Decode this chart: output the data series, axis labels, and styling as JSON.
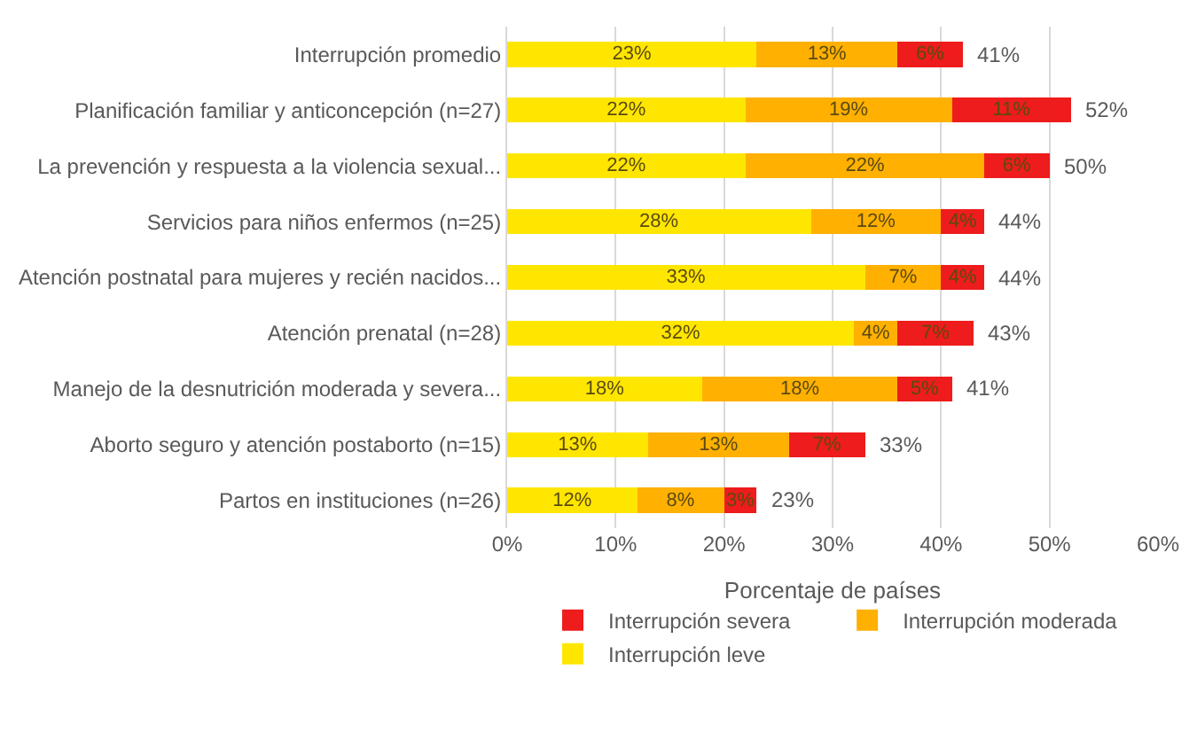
{
  "chart_data": {
    "type": "bar",
    "orientation": "horizontal",
    "stacked": true,
    "categories": [
      "Interrupción promedio",
      "Planificación familiar y anticoncepción (n=27)",
      "La prevención y respuesta a la violencia sexual...",
      "Servicios para niños enfermos (n=25)",
      "Atención postnatal para mujeres y recién nacidos...",
      "Atención prenatal (n=28)",
      "Manejo de la desnutrición moderada y severa...",
      "Aborto seguro y atención postaborto (n=15)",
      "Partos en instituciones (n=26)"
    ],
    "series": [
      {
        "name": "Interrupción leve",
        "color": "#ffe600",
        "values": [
          23,
          22,
          22,
          28,
          33,
          32,
          18,
          13,
          12
        ],
        "value_labels": [
          "23%",
          "22%",
          "22%",
          "28%",
          "33%",
          "32%",
          "18%",
          "13%",
          "12%"
        ]
      },
      {
        "name": "Interrupción moderada",
        "color": "#ffb000",
        "values": [
          13,
          19,
          22,
          12,
          7,
          4,
          18,
          13,
          8
        ],
        "value_labels": [
          "13%",
          "19%",
          "22%",
          "12%",
          "7%",
          "4%",
          "18%",
          "13%",
          "8%"
        ]
      },
      {
        "name": "Interrupción severa",
        "color": "#ee1c1c",
        "values": [
          6,
          11,
          6,
          4,
          4,
          7,
          5,
          7,
          3
        ],
        "value_labels": [
          "6%",
          "11%",
          "6%",
          "4%",
          "4%",
          "7%",
          "5%",
          "7%",
          "3%"
        ]
      }
    ],
    "totals": [
      "41%",
      "52%",
      "50%",
      "44%",
      "44%",
      "43%",
      "41%",
      "33%",
      "23%"
    ],
    "xlabel": "Porcentaje de países",
    "xlim": [
      0,
      60
    ],
    "xticks": [
      {
        "value": 0,
        "label": "0%"
      },
      {
        "value": 10,
        "label": "10%"
      },
      {
        "value": 20,
        "label": "20%"
      },
      {
        "value": 30,
        "label": "30%"
      },
      {
        "value": 40,
        "label": "40%"
      },
      {
        "value": 50,
        "label": "50%"
      },
      {
        "value": 60,
        "label": "60%"
      }
    ],
    "grid": "x",
    "legend": "bottom"
  }
}
